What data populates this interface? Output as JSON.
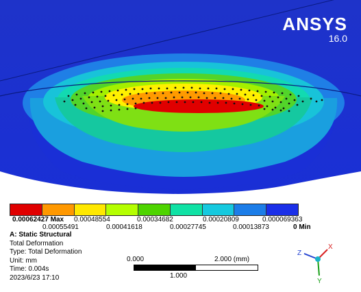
{
  "logo": {
    "name": "ANSYS",
    "version": "16.0"
  },
  "legend": {
    "colors": [
      "#e00000",
      "#ff9800",
      "#ffe800",
      "#b5ff00",
      "#4ed400",
      "#10e2a5",
      "#16c9df",
      "#1c7de8",
      "#1a2fe8"
    ],
    "top_labels": [
      "0.00062427 Max",
      "0.00048554",
      "0.00034682",
      "0.00020809",
      "0.000069363"
    ],
    "bottom_labels": [
      "0.00055491",
      "0.00041618",
      "0.00027745",
      "0.00013873",
      "0 Min"
    ]
  },
  "info": {
    "analysis": "A: Static Structural",
    "result": "Total Deformation",
    "type": "Type: Total Deformation",
    "unit": "Unit: mm",
    "time": "Time: 0.004s",
    "date": "2023/6/23 17:10"
  },
  "scale_bar": {
    "left": "0.000",
    "right": "2.000 (mm)",
    "middle": "1.000"
  },
  "triad": {
    "x": "X",
    "y": "Y",
    "z": "Z"
  }
}
